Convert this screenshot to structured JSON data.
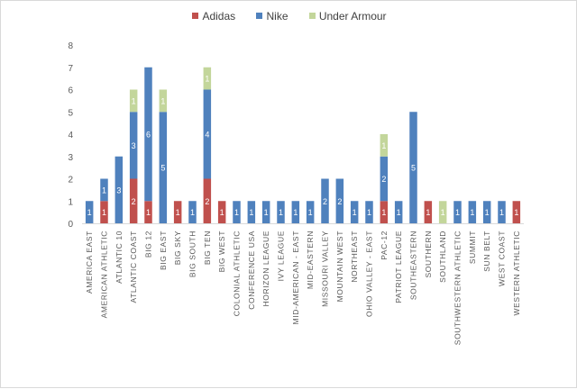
{
  "chart_data": {
    "type": "bar",
    "stacked": true,
    "categories": [
      "AMERICA EAST",
      "AMERICAN ATHLETIC",
      "ATLANTIC 10",
      "ATLANTIC COAST",
      "BIG 12",
      "BIG EAST",
      "BIG SKY",
      "BIG SOUTH",
      "BIG TEN",
      "BIG WEST",
      "COLONIAL ATHLETIC",
      "CONFERENCE USA",
      "HORIZON LEAGUE",
      "IVY LEAGUE",
      "MID-AMERICAN - EAST",
      "MID-EASTERN",
      "MISSOURI VALLEY",
      "MOUNTAIN WEST",
      "NORTHEAST",
      "OHIO VALLEY - EAST",
      "PAC-12",
      "PATRIOT LEAGUE",
      "SOUTHEASTERN",
      "SOUTHERN",
      "SOUTHLAND",
      "SOUTHWESTERN ATHLETIC",
      "SUMMIT",
      "SUN BELT",
      "WEST COAST",
      "WESTERN ATHLETIC"
    ],
    "series": [
      {
        "name": "Adidas",
        "color": "#c0504d",
        "values": [
          0,
          1,
          0,
          2,
          1,
          0,
          1,
          0,
          2,
          1,
          0,
          0,
          0,
          0,
          0,
          0,
          0,
          0,
          0,
          0,
          1,
          0,
          0,
          1,
          0,
          0,
          0,
          0,
          0,
          1
        ]
      },
      {
        "name": "Nike",
        "color": "#4f81bd",
        "values": [
          1,
          1,
          3,
          3,
          6,
          5,
          0,
          1,
          4,
          0,
          1,
          1,
          1,
          1,
          1,
          1,
          2,
          2,
          1,
          1,
          2,
          1,
          5,
          0,
          0,
          1,
          1,
          1,
          1,
          0
        ]
      },
      {
        "name": "Under Armour",
        "color": "#c3d69b",
        "values": [
          0,
          0,
          0,
          1,
          0,
          1,
          0,
          0,
          1,
          0,
          0,
          0,
          0,
          0,
          0,
          0,
          0,
          0,
          0,
          0,
          1,
          0,
          0,
          0,
          1,
          0,
          0,
          0,
          0,
          0
        ]
      }
    ],
    "ylim": [
      0,
      8
    ],
    "yticks": [
      0,
      1,
      2,
      3,
      4,
      5,
      6,
      7,
      8
    ],
    "grid": false,
    "legend_position": "top",
    "data_labels": true
  }
}
